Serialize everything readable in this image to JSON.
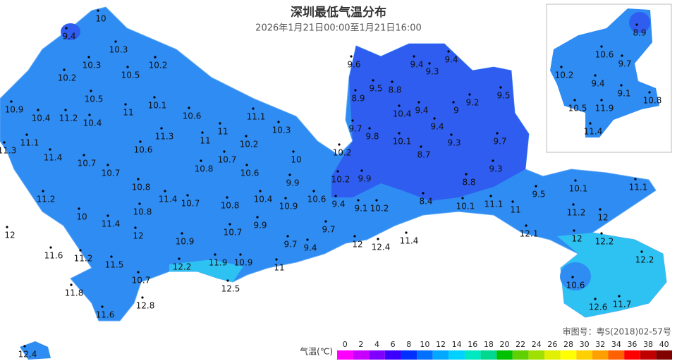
{
  "header": {
    "title": "深圳最低气温分布",
    "subtitle": "2026年1月21日00:00至1月21日16:00"
  },
  "stations": [
    10,
    9.4,
    10.3,
    10.2,
    10.3,
    10.5,
    10.2,
    10.5,
    11,
    10.1,
    10.9,
    10.4,
    11.2,
    10.4,
    10.6,
    11.1,
    11,
    11.3,
    11,
    10.2,
    10.3,
    11.1,
    11.3,
    10.6,
    11.4,
    10.7,
    10.7,
    10.8,
    10,
    10.7,
    10.6,
    10.8,
    9.9,
    11.4,
    10.7,
    10.4,
    10.6,
    10.9,
    10.8,
    11.2,
    10.8,
    10,
    11.4,
    9.9,
    9.7,
    12,
    10.7,
    12,
    10.9,
    9.7,
    9.4,
    11.6,
    11.2,
    11.5,
    12.2,
    11.9,
    10.9,
    11,
    10.7,
    11.8,
    12.5,
    12.8,
    11.6,
    12.4,
    9.6,
    9.4,
    9.4,
    9.3,
    9.5,
    8.8,
    8.9,
    9.5,
    9.2,
    10.4,
    9.4,
    9,
    9.7,
    9.8,
    9.4,
    10.1,
    9.3,
    9.7,
    10.2,
    8.7,
    9.3,
    10.2,
    9.9,
    8.8,
    9.4,
    9.1,
    10.2,
    8.4,
    10.1,
    11.1,
    11,
    9.5,
    10.1,
    11.1,
    11.2,
    12,
    12.1,
    12,
    12.4,
    11.4,
    12,
    12.2,
    12.2,
    10.6,
    12.6,
    11.7
  ],
  "inset_stations": [
    8.9,
    10.6,
    9.7,
    10.2,
    9.4,
    9.1,
    10.8,
    10.5,
    11.9,
    11.4
  ],
  "footer": {
    "approval": "审图号：粤S(2018)02-57号"
  },
  "legend": {
    "title": "气温(℃)",
    "ticks": [
      0,
      2,
      4,
      6,
      8,
      10,
      12,
      14,
      16,
      18,
      20,
      22,
      24,
      26,
      28,
      30,
      32,
      34,
      36,
      38,
      40
    ],
    "colors": [
      "#ff00ff",
      "#c800ff",
      "#8000ff",
      "#3c00ff",
      "#0030ff",
      "#0070ff",
      "#00a8ff",
      "#00d2ff",
      "#00e8c0",
      "#00d890",
      "#00c000",
      "#60d000",
      "#a0e000",
      "#e0f000",
      "#ffff00",
      "#ffd000",
      "#ffa000",
      "#ff6000",
      "#ff0000",
      "#c00000",
      "#800000"
    ]
  }
}
